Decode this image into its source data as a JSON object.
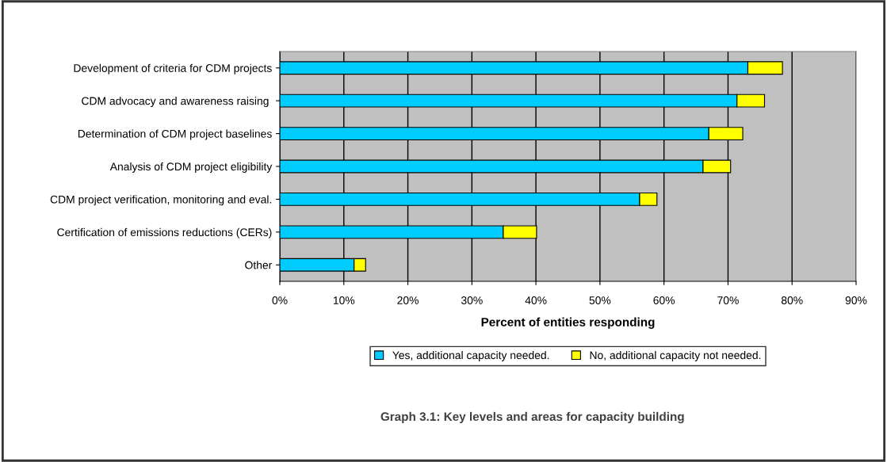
{
  "chart_data": {
    "type": "bar",
    "orientation": "horizontal",
    "stacked": true,
    "title": "Graph 3.1: Key levels and areas for capacity building",
    "xlabel": "Percent of entities responding",
    "categories": [
      "Development of criteria for CDM projects",
      "CDM advocacy and awareness raising ",
      "Determination of CDM project baselines",
      "Analysis of CDM project eligibility",
      "CDM project verification, monitoring and eval.",
      "Certification of emissions reductions (CERs)",
      "Other"
    ],
    "series": [
      {
        "name": "Yes, additional capacity needed.",
        "color": "#00ccff",
        "values": [
          73.1,
          71.4,
          67.0,
          66.1,
          56.2,
          34.9,
          11.6
        ]
      },
      {
        "name": "No, additional capacity not needed.",
        "color": "#ffff00",
        "values": [
          5.4,
          4.3,
          5.3,
          4.3,
          2.7,
          5.2,
          1.8
        ]
      }
    ],
    "xlim": [
      0,
      90
    ],
    "xticks": [
      {
        "value": 0,
        "label": "0%"
      },
      {
        "value": 10,
        "label": "10%"
      },
      {
        "value": 20,
        "label": "20%"
      },
      {
        "value": 30,
        "label": "30%"
      },
      {
        "value": 40,
        "label": "40%"
      },
      {
        "value": 50,
        "label": "50%"
      },
      {
        "value": 60,
        "label": "60%"
      },
      {
        "value": 70,
        "label": "70%"
      },
      {
        "value": 80,
        "label": "80%"
      },
      {
        "value": 90,
        "label": "90%"
      }
    ],
    "grid": "x",
    "legend": "bottom"
  }
}
